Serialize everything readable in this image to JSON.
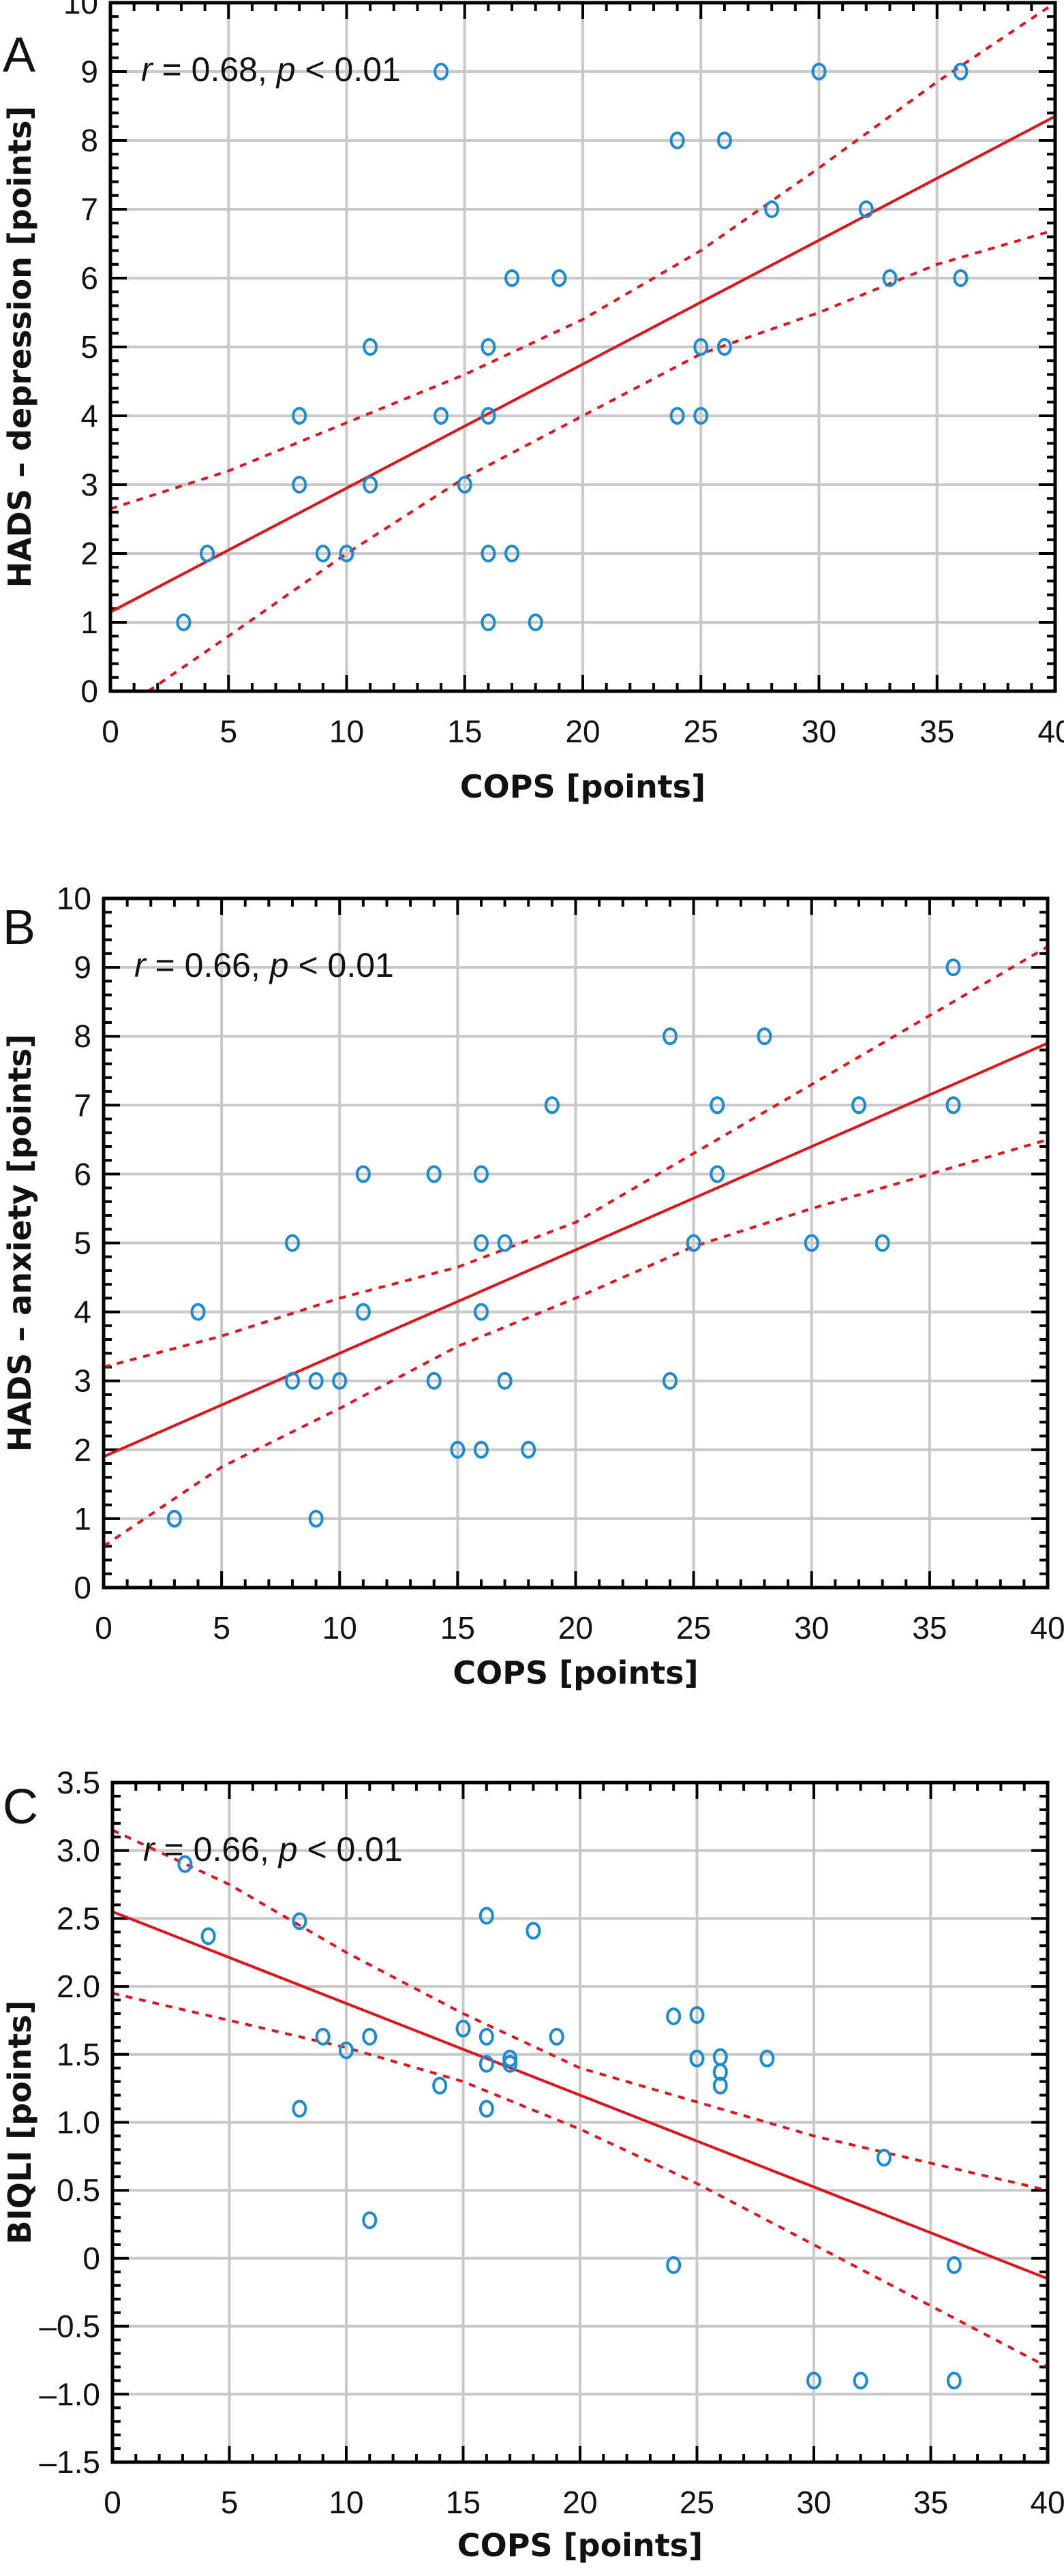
{
  "colors": {
    "points": "#1a8ad4",
    "fit": "#e0121b",
    "grid": "#c8c8c8",
    "axis": "#000000"
  },
  "chart_data": [
    {
      "type": "scatter",
      "panel": "A",
      "annotation": {
        "r_label": "r",
        "r_text": " = 0.68, ",
        "p_label": "p",
        "p_text": " < 0.01"
      },
      "xlabel": "COPS [points]",
      "ylabel": "HADS – depression [points]",
      "xlim": [
        0,
        40
      ],
      "ylim": [
        0,
        10
      ],
      "xticks": [
        0,
        5,
        10,
        15,
        20,
        25,
        30,
        35,
        40
      ],
      "yticks": [
        0,
        1,
        2,
        3,
        4,
        5,
        6,
        7,
        8,
        9,
        10
      ],
      "ytick_labels": [
        "0",
        "1",
        "2",
        "3",
        "4",
        "5",
        "6",
        "7",
        "8",
        "9",
        "10"
      ],
      "grid": true,
      "points": [
        [
          3.1,
          1
        ],
        [
          4.1,
          2
        ],
        [
          8,
          4
        ],
        [
          8,
          3
        ],
        [
          9,
          2
        ],
        [
          10,
          2
        ],
        [
          11,
          5
        ],
        [
          11,
          3
        ],
        [
          14,
          9
        ],
        [
          14,
          4
        ],
        [
          15,
          3
        ],
        [
          16,
          5
        ],
        [
          16,
          4
        ],
        [
          16,
          2
        ],
        [
          16,
          1
        ],
        [
          17,
          6
        ],
        [
          17,
          2
        ],
        [
          18,
          1
        ],
        [
          19,
          6
        ],
        [
          24,
          8
        ],
        [
          24,
          4
        ],
        [
          25,
          5
        ],
        [
          25,
          4
        ],
        [
          26,
          8
        ],
        [
          26,
          5
        ],
        [
          28,
          7
        ],
        [
          30,
          9
        ],
        [
          32,
          7
        ],
        [
          33,
          6
        ],
        [
          36,
          9
        ],
        [
          36,
          6
        ]
      ],
      "fit_line": [
        [
          0,
          1.15
        ],
        [
          40,
          8.35
        ]
      ],
      "ci_upper": [
        [
          0,
          2.65
        ],
        [
          5,
          3.2
        ],
        [
          10,
          3.9
        ],
        [
          15,
          4.6
        ],
        [
          20,
          5.4
        ],
        [
          25,
          6.4
        ],
        [
          30,
          7.6
        ],
        [
          35,
          8.85
        ],
        [
          40,
          10
        ]
      ],
      "ci_lower": [
        [
          1.6,
          0
        ],
        [
          5,
          0.8
        ],
        [
          10,
          2
        ],
        [
          15,
          3.1
        ],
        [
          20,
          4
        ],
        [
          25,
          4.9
        ],
        [
          30,
          5.5
        ],
        [
          35,
          6.2
        ],
        [
          40,
          6.7
        ]
      ]
    },
    {
      "type": "scatter",
      "panel": "B",
      "annotation": {
        "r_label": "r",
        "r_text": " = 0.66, ",
        "p_label": "p",
        "p_text": " < 0.01"
      },
      "xlabel": "COPS [points]",
      "ylabel": "HADS – anxiety [points]",
      "xlim": [
        0,
        40
      ],
      "ylim": [
        0,
        10
      ],
      "xticks": [
        0,
        5,
        10,
        15,
        20,
        25,
        30,
        35,
        40
      ],
      "yticks": [
        0,
        1,
        2,
        3,
        4,
        5,
        6,
        7,
        8,
        9,
        10
      ],
      "ytick_labels": [
        "0",
        "1",
        "2",
        "3",
        "4",
        "5",
        "6",
        "7",
        "8",
        "9",
        "10"
      ],
      "grid": true,
      "points": [
        [
          3,
          1
        ],
        [
          4,
          4
        ],
        [
          8,
          5
        ],
        [
          8,
          3
        ],
        [
          9,
          3
        ],
        [
          9,
          1
        ],
        [
          10,
          3
        ],
        [
          11,
          6
        ],
        [
          11,
          4
        ],
        [
          14,
          6
        ],
        [
          14,
          3
        ],
        [
          15,
          2
        ],
        [
          16,
          6
        ],
        [
          16,
          5
        ],
        [
          16,
          4
        ],
        [
          16,
          2
        ],
        [
          17,
          5
        ],
        [
          17,
          3
        ],
        [
          18,
          2
        ],
        [
          19,
          7
        ],
        [
          24,
          8
        ],
        [
          24,
          3
        ],
        [
          25,
          5
        ],
        [
          26,
          7
        ],
        [
          26,
          6
        ],
        [
          28,
          8
        ],
        [
          30,
          5
        ],
        [
          32,
          7
        ],
        [
          33,
          5
        ],
        [
          36,
          9
        ],
        [
          36,
          7
        ]
      ],
      "fit_line": [
        [
          0,
          1.9
        ],
        [
          40,
          7.9
        ]
      ],
      "ci_upper": [
        [
          0,
          3.2
        ],
        [
          5,
          3.65
        ],
        [
          10,
          4.2
        ],
        [
          15,
          4.65
        ],
        [
          20,
          5.3
        ],
        [
          25,
          6.3
        ],
        [
          30,
          7.3
        ],
        [
          35,
          8.3
        ],
        [
          40,
          9.3
        ]
      ],
      "ci_lower": [
        [
          0,
          0.6
        ],
        [
          5,
          1.75
        ],
        [
          10,
          2.6
        ],
        [
          15,
          3.5
        ],
        [
          20,
          4.2
        ],
        [
          25,
          4.95
        ],
        [
          30,
          5.5
        ],
        [
          35,
          6
        ],
        [
          40,
          6.5
        ]
      ]
    },
    {
      "type": "scatter",
      "panel": "C",
      "annotation": {
        "r_label": "r",
        "r_text": " = 0.66, ",
        "p_label": "p",
        "p_text": " < 0.01"
      },
      "xlabel": "COPS [points]",
      "ylabel": "BIQLI [points]",
      "xlim": [
        0,
        40
      ],
      "ylim": [
        -1.5,
        3.5
      ],
      "xticks": [
        0,
        5,
        10,
        15,
        20,
        25,
        30,
        35,
        40
      ],
      "yticks": [
        -1.5,
        -1,
        -0.5,
        0,
        0.5,
        1,
        1.5,
        2,
        2.5,
        3,
        3.5
      ],
      "ytick_labels": [
        "–1.5",
        "–1.0",
        "–0.5",
        "0",
        "0.5",
        "1.0",
        "1.5",
        "2.0",
        "2.5",
        "3.0",
        "3.5"
      ],
      "grid": true,
      "points": [
        [
          3.1,
          2.9
        ],
        [
          4.1,
          2.37
        ],
        [
          8,
          2.48
        ],
        [
          8,
          1.1
        ],
        [
          9,
          1.63
        ],
        [
          10,
          1.53
        ],
        [
          11,
          1.63
        ],
        [
          11,
          0.28
        ],
        [
          14,
          1.27
        ],
        [
          15,
          1.69
        ],
        [
          16,
          2.52
        ],
        [
          16,
          1.63
        ],
        [
          16,
          1.43
        ],
        [
          16,
          1.1
        ],
        [
          17,
          1.47
        ],
        [
          17,
          1.43
        ],
        [
          18,
          2.41
        ],
        [
          19,
          1.63
        ],
        [
          24,
          1.78
        ],
        [
          24,
          -0.05
        ],
        [
          25,
          1.79
        ],
        [
          25,
          1.47
        ],
        [
          26,
          1.48
        ],
        [
          26,
          1.37
        ],
        [
          26,
          1.27
        ],
        [
          28,
          1.47
        ],
        [
          30,
          -0.9
        ],
        [
          32,
          -0.9
        ],
        [
          33,
          0.74
        ],
        [
          36,
          -0.05
        ],
        [
          36,
          -0.9
        ]
      ],
      "fit_line": [
        [
          0,
          2.55
        ],
        [
          40,
          -0.15
        ]
      ],
      "ci_upper": [
        [
          0,
          3.15
        ],
        [
          5,
          2.75
        ],
        [
          10,
          2.25
        ],
        [
          15,
          1.8
        ],
        [
          20,
          1.4
        ],
        [
          25,
          1.15
        ],
        [
          30,
          0.9
        ],
        [
          35,
          0.7
        ],
        [
          40,
          0.5
        ]
      ],
      "ci_lower": [
        [
          0,
          1.95
        ],
        [
          5,
          1.75
        ],
        [
          10,
          1.55
        ],
        [
          15,
          1.3
        ],
        [
          20,
          0.95
        ],
        [
          25,
          0.55
        ],
        [
          30,
          0.1
        ],
        [
          35,
          -0.35
        ],
        [
          40,
          -0.8
        ]
      ]
    }
  ]
}
